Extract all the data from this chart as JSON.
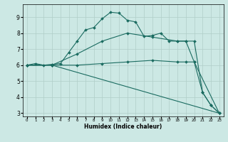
{
  "xlabel": "Humidex (Indice chaleur)",
  "background_color": "#cce8e4",
  "grid_color": "#b0cec8",
  "line_color": "#1a6b60",
  "xlim": [
    -0.5,
    23.5
  ],
  "ylim": [
    2.8,
    9.8
  ],
  "yticks": [
    3,
    4,
    5,
    6,
    7,
    8,
    9
  ],
  "xticks": [
    0,
    1,
    2,
    3,
    4,
    5,
    6,
    7,
    8,
    9,
    10,
    11,
    12,
    13,
    14,
    15,
    16,
    17,
    18,
    19,
    20,
    21,
    22,
    23
  ],
  "series": [
    {
      "x": [
        0,
        1,
        2,
        3,
        4,
        5,
        6,
        7,
        8,
        9,
        10,
        11,
        12,
        13,
        14,
        15,
        16,
        17,
        18,
        19,
        20,
        21,
        22,
        23
      ],
      "y": [
        6.0,
        6.1,
        6.0,
        6.05,
        6.1,
        6.8,
        7.5,
        8.2,
        8.35,
        8.9,
        9.3,
        9.25,
        8.8,
        8.7,
        7.8,
        7.85,
        8.0,
        7.5,
        7.5,
        7.5,
        6.2,
        4.3,
        3.5,
        3.0
      ]
    },
    {
      "x": [
        0,
        3,
        6,
        9,
        12,
        15,
        18,
        19,
        20,
        21,
        22,
        23
      ],
      "y": [
        6.0,
        6.0,
        6.7,
        7.5,
        8.0,
        7.75,
        7.5,
        7.5,
        7.5,
        4.3,
        3.5,
        3.0
      ]
    },
    {
      "x": [
        0,
        3,
        6,
        9,
        12,
        15,
        18,
        19,
        20,
        23
      ],
      "y": [
        6.0,
        6.0,
        6.0,
        6.1,
        6.2,
        6.3,
        6.2,
        6.2,
        6.2,
        3.0
      ]
    },
    {
      "x": [
        0,
        3,
        23
      ],
      "y": [
        6.0,
        6.0,
        3.0
      ]
    }
  ]
}
